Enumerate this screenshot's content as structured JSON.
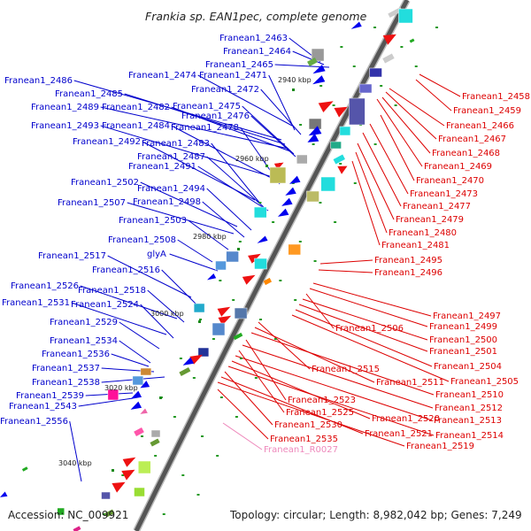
{
  "title": "Frankia sp. EAN1pec, complete genome",
  "footer": {
    "accession": "Accession: NC_009921",
    "summary": "Topology: circular; Length: 8,982,042 bp; Genes: 7,249"
  },
  "kbp_ticks": [
    "2940 kbp",
    "2960 kbp",
    "2980 kbp",
    "3000 kbp",
    "3020 kbp",
    "3040 kbp"
  ],
  "colors": {
    "left_label": "#0000cc",
    "right_label": "#dd0000",
    "rna_label": "#ee88bb"
  },
  "left_labels": [
    "Franean1_2463",
    "Franean1_2464",
    "Franean1_2465",
    "Franean1_2474",
    "Franean1_2471",
    "Franean1_2472",
    "Franean1_2486",
    "Franean1_2485",
    "Franean1_2489",
    "Franean1_2482",
    "Franean1_2475",
    "Franean1_2476",
    "Franean1_2493",
    "Franean1_2484",
    "Franean1_2478",
    "Franean1_2492",
    "Franean1_2483",
    "Franean1_2487",
    "Franean1_2491",
    "Franean1_2502",
    "Franean1_2494",
    "Franean1_2507",
    "Franean1_2498",
    "Franean1_2503",
    "Franean1_2508",
    "glyA",
    "Franean1_2517",
    "Franean1_2516",
    "Franean1_2526",
    "Franean1_2518",
    "Franean1_2531",
    "Franean1_2524",
    "Franean1_2529",
    "Franean1_2534",
    "Franean1_2536",
    "Franean1_2537",
    "Franean1_2538",
    "Franean1_2539",
    "Franean1_2543",
    "Franean1_2556"
  ],
  "right_labels": [
    "Franean1_2458",
    "Franean1_2459",
    "Franean1_2466",
    "Franean1_2467",
    "Franean1_2468",
    "Franean1_2469",
    "Franean1_2470",
    "Franean1_2473",
    "Franean1_2477",
    "Franean1_2479",
    "Franean1_2480",
    "Franean1_2481",
    "Franean1_2495",
    "Franean1_2496",
    "Franean1_2497",
    "Franean1_2499",
    "Franean1_2506",
    "Franean1_2500",
    "Franean1_2501",
    "Franean1_2504",
    "Franean1_2505",
    "Franean1_2515",
    "Franean1_2511",
    "Franean1_2510",
    "Franean1_2523",
    "Franean1_2512",
    "Franean1_2525",
    "Franean1_2513",
    "Franean1_2520",
    "Franean1_2514",
    "Franean1_2530",
    "Franean1_2521",
    "Franean1_2519",
    "Franean1_2535"
  ],
  "rna_labels": [
    "Franean1_R0027"
  ]
}
